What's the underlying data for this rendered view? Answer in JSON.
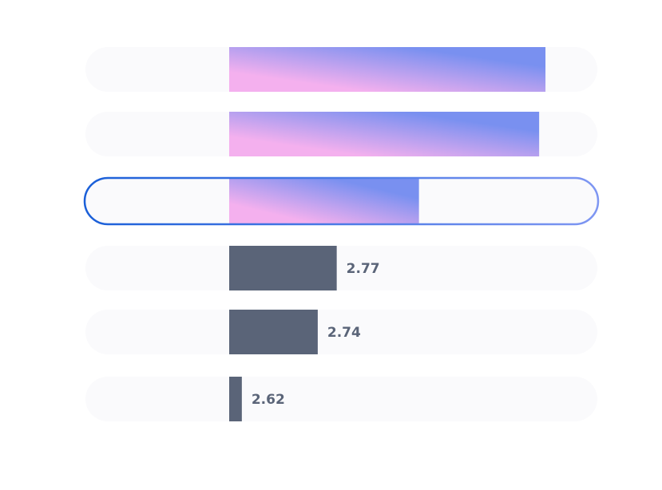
{
  "chart_data": {
    "type": "bar",
    "orientation": "horizontal",
    "categories": [
      "",
      "",
      "",
      "",
      "",
      ""
    ],
    "values": [
      3.1,
      3.09,
      2.9,
      2.77,
      2.74,
      2.62
    ],
    "value_labels": [
      "",
      "",
      "",
      "2.77",
      "2.74",
      "2.62"
    ],
    "title": "",
    "xlabel": "",
    "ylabel": "",
    "xlim": [
      2.6,
      3.11
    ],
    "highlighted_index": 2,
    "grid": false,
    "legend": "none",
    "colors": {
      "gradient_start": "#f4b0ee",
      "gradient_end": "#7990f0",
      "plain_bar": "#5a6478",
      "label": "#5a6478",
      "track": "#fafafc",
      "highlight_outline_start": "#1a5fd8",
      "highlight_outline_end": "#7e96f2"
    }
  }
}
